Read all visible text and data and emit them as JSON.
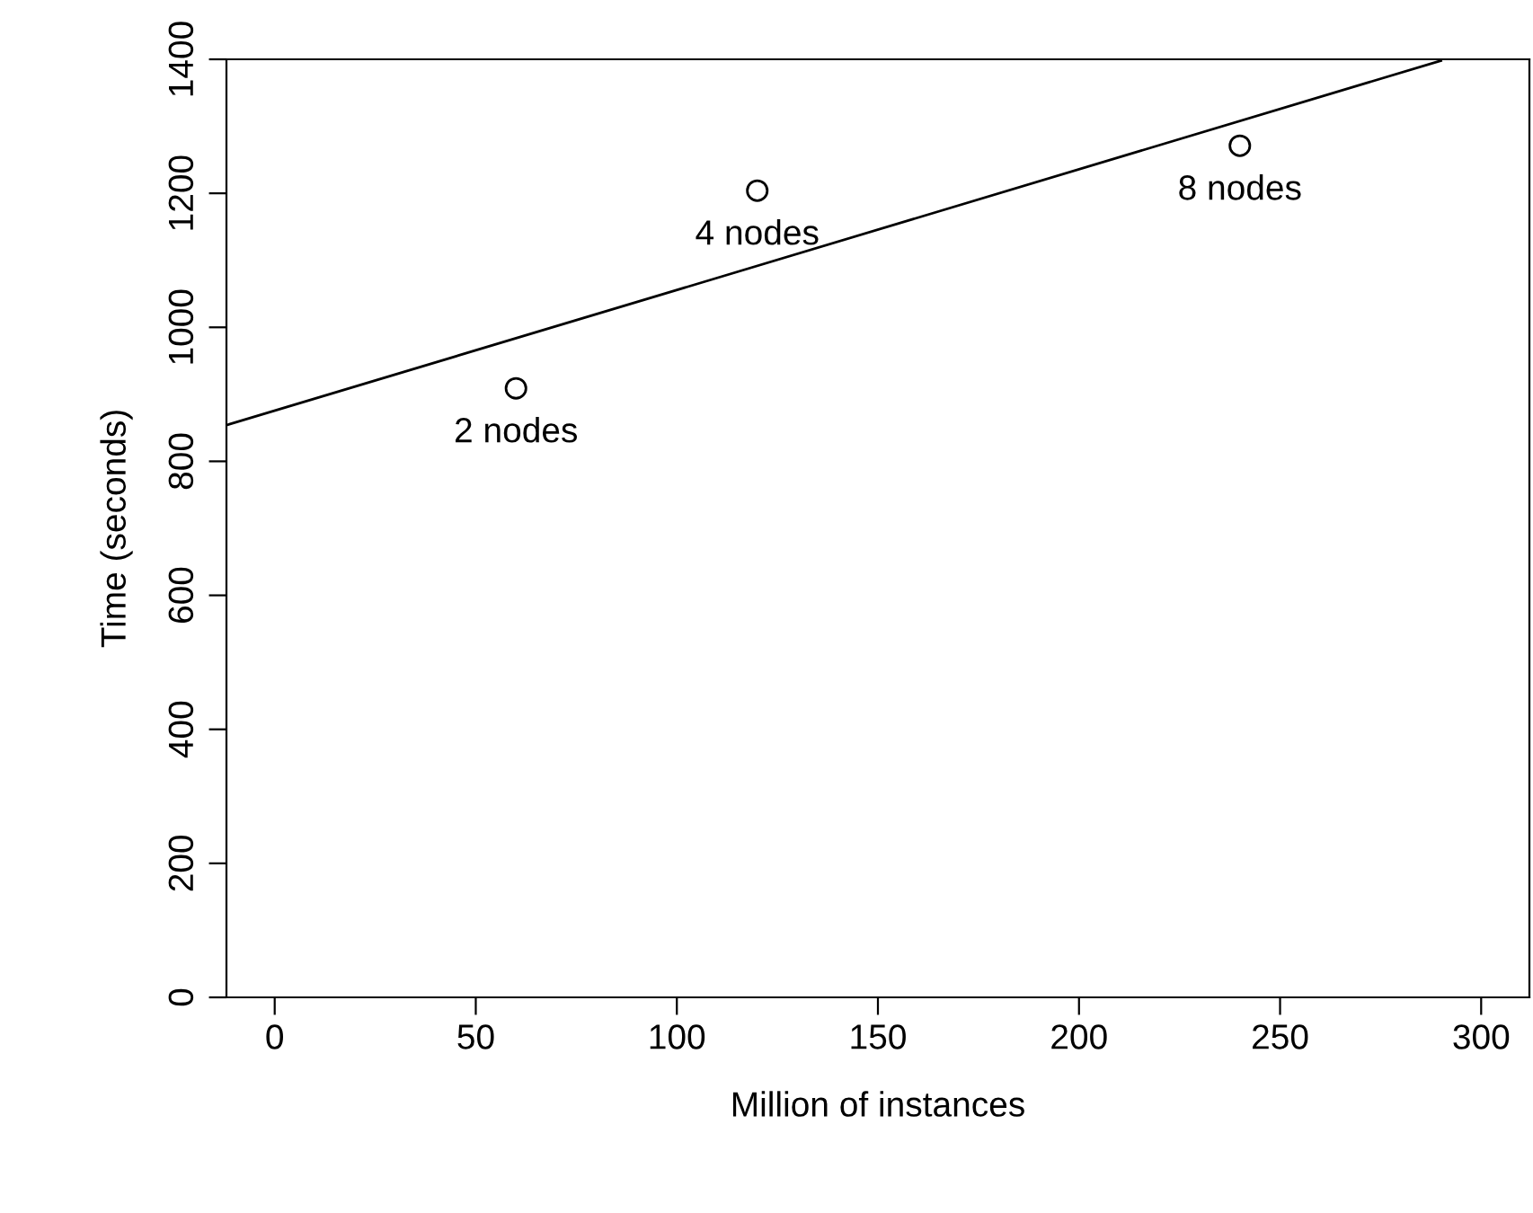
{
  "chart_data": {
    "type": "scatter",
    "xlabel": "Million of instances",
    "ylabel": "Time (seconds)",
    "marker": "circle",
    "series": [
      {
        "x": [
          60,
          120,
          240
        ],
        "values": [
          909,
          1204,
          1271
        ],
        "color": "#000000"
      },
      {
        "type": "line",
        "marker": "none",
        "x": [
          -12,
          290
        ],
        "values": [
          854,
          1398
        ],
        "color": "#000000"
      }
    ],
    "annotations": [
      {
        "text": "2 nodes",
        "x": 60,
        "y": 909
      },
      {
        "text": "4 nodes",
        "x": 120,
        "y": 1204
      },
      {
        "text": "8 nodes",
        "x": 240,
        "y": 1271
      }
    ],
    "xlim": [
      -12,
      312
    ],
    "xticks": [
      0,
      50,
      100,
      150,
      200,
      250,
      300
    ],
    "ylim": [
      0,
      1400
    ],
    "yticks": [
      0,
      200,
      400,
      600,
      800,
      1000,
      1200,
      1400
    ],
    "grid": false,
    "legend": false
  }
}
